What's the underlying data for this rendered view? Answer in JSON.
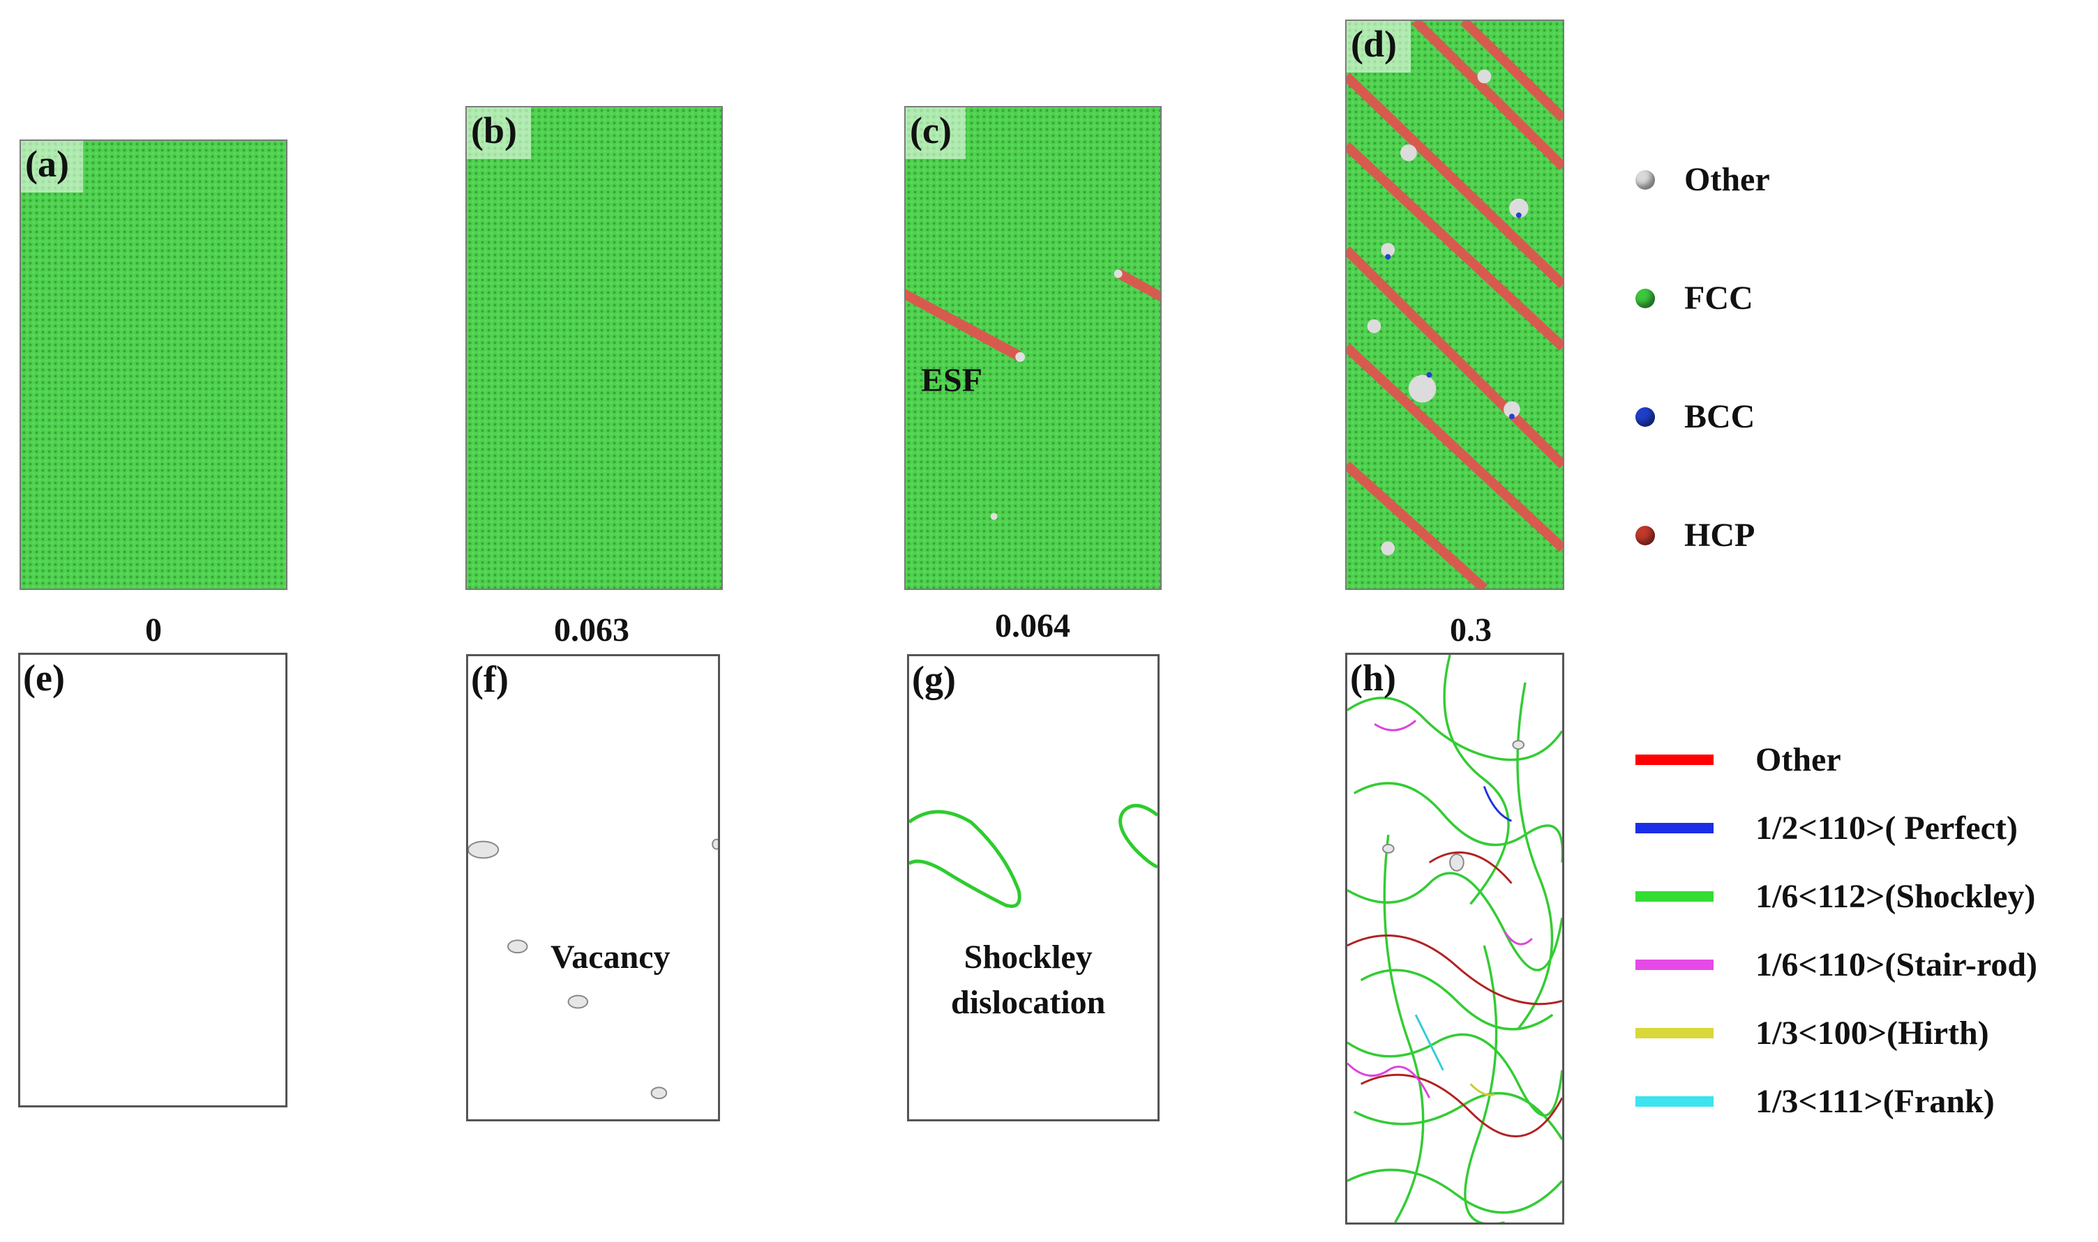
{
  "top_panels": [
    {
      "label": "(a)",
      "strain": "0"
    },
    {
      "label": "(b)",
      "strain": "0.063"
    },
    {
      "label": "(c)",
      "strain": "0.064"
    },
    {
      "label": "(d)",
      "strain": "0.3"
    }
  ],
  "bottom_panels": [
    {
      "label": "(e)"
    },
    {
      "label": "(f)"
    },
    {
      "label": "(g)"
    },
    {
      "label": "(h)"
    }
  ],
  "annotations": {
    "esf": "ESF",
    "vacancy": "Vacancy",
    "shockley_line1": "Shockley",
    "shockley_line2": "dislocation"
  },
  "structure_legend": [
    {
      "label": "Other",
      "color": "#d9d9d9"
    },
    {
      "label": "FCC",
      "color": "#3ec63e"
    },
    {
      "label": "BCC",
      "color": "#1f3fc8"
    },
    {
      "label": "HCP",
      "color": "#c0392b"
    }
  ],
  "dislocation_legend": [
    {
      "label": "Other",
      "color": "#ff0000"
    },
    {
      "label": "1/2<110>( Perfect)",
      "color": "#1a2ee6"
    },
    {
      "label": "1/6<112>(Shockley)",
      "color": "#33dd33"
    },
    {
      "label": "1/6<110>(Stair-rod)",
      "color": "#e64ae6"
    },
    {
      "label": "1/3<100>(Hirth)",
      "color": "#d8d83a"
    },
    {
      "label": "1/3<111>(Frank)",
      "color": "#3de3f0"
    }
  ]
}
